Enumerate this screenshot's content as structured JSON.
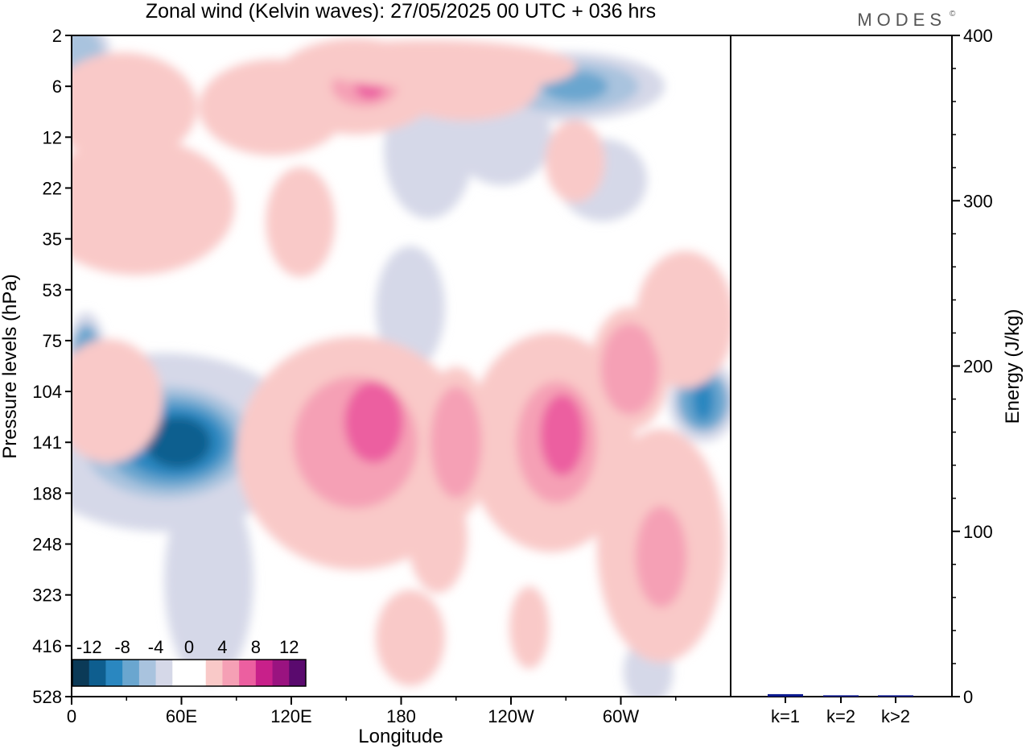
{
  "title": "Zonal wind (Kelvin waves):  27/05/2025  00 UTC  + 036 hrs",
  "brand": "MODES",
  "brand_mark": "©",
  "chart_data": [
    {
      "type": "heatmap",
      "xlabel": "Longitude",
      "ylabel": "Pressure levels (hPa)",
      "x_tick_labels": [
        "0",
        "60E",
        "120E",
        "180",
        "120W",
        "60W"
      ],
      "y_tick_labels": [
        "2",
        "6",
        "12",
        "22",
        "35",
        "53",
        "75",
        "104",
        "141",
        "188",
        "248",
        "323",
        "416",
        "528"
      ],
      "colorbar": {
        "labels": [
          "-12",
          "-8",
          "-4",
          "0",
          "4",
          "8",
          "12"
        ],
        "colors": [
          "#0b3a57",
          "#0e5e8f",
          "#2a87c0",
          "#6aa6cf",
          "#a9c3de",
          "#d5d8e8",
          "#ffffff",
          "#ffffff",
          "#f9c9c8",
          "#f5a0b5",
          "#ec5fa0",
          "#c8208a",
          "#9a1380",
          "#5a0a6e"
        ]
      },
      "field": {
        "negative": [
          {
            "lon": 50,
            "p": 141,
            "w": 58,
            "h": 2.6,
            "level": 5
          },
          {
            "lon": 52,
            "p": 141,
            "w": 46,
            "h": 2.2,
            "level": 4
          },
          {
            "lon": 54,
            "p": 141,
            "w": 36,
            "h": 1.8,
            "level": 3
          },
          {
            "lon": 56,
            "p": 141,
            "w": 28,
            "h": 1.4,
            "level": 2
          },
          {
            "lon": 58,
            "p": 141,
            "w": 18,
            "h": 1.0,
            "level": 1
          },
          {
            "lon": 8,
            "p": 85,
            "w": 8,
            "h": 1.4,
            "level": 3
          },
          {
            "lon": 345,
            "p": 110,
            "w": 14,
            "h": 1.2,
            "level": 3
          },
          {
            "lon": 345,
            "p": 110,
            "w": 6,
            "h": 0.8,
            "level": 2
          },
          {
            "lon": 270,
            "p": 6,
            "w": 40,
            "h": 1.0,
            "level": 4
          },
          {
            "lon": 275,
            "p": 6,
            "w": 18,
            "h": 0.6,
            "level": 3
          },
          {
            "lon": 235,
            "p": 12,
            "w": 20,
            "h": 1.4,
            "level": 5
          },
          {
            "lon": 185,
            "p": 60,
            "w": 14,
            "h": 1.8,
            "level": 5
          },
          {
            "lon": 195,
            "p": 14,
            "w": 18,
            "h": 2.0,
            "level": 5
          },
          {
            "lon": 75,
            "p": 300,
            "w": 18,
            "h": 3.0,
            "level": 5
          },
          {
            "lon": 5,
            "p": 3,
            "w": 12,
            "h": 1.0,
            "level": 4
          },
          {
            "lon": 30,
            "p": 12,
            "w": 12,
            "h": 1.2,
            "level": 5
          },
          {
            "lon": 290,
            "p": 20,
            "w": 18,
            "h": 1.2,
            "level": 5
          },
          {
            "lon": 315,
            "p": 470,
            "w": 10,
            "h": 1.0,
            "level": 5
          }
        ],
        "positive": [
          {
            "lon": 155,
            "p": 150,
            "w": 48,
            "h": 3.4,
            "level": 8
          },
          {
            "lon": 155,
            "p": 141,
            "w": 34,
            "h": 2.6,
            "level": 9
          },
          {
            "lon": 165,
            "p": 125,
            "w": 16,
            "h": 1.6,
            "level": 10
          },
          {
            "lon": 262,
            "p": 141,
            "w": 34,
            "h": 3.2,
            "level": 8
          },
          {
            "lon": 265,
            "p": 141,
            "w": 22,
            "h": 2.4,
            "level": 9
          },
          {
            "lon": 268,
            "p": 135,
            "w": 12,
            "h": 1.6,
            "level": 10
          },
          {
            "lon": 322,
            "p": 250,
            "w": 26,
            "h": 3.4,
            "level": 8
          },
          {
            "lon": 322,
            "p": 265,
            "w": 14,
            "h": 2.0,
            "level": 9
          },
          {
            "lon": 210,
            "p": 141,
            "w": 14,
            "h": 2.2,
            "level": 9
          },
          {
            "lon": 155,
            "p": 6,
            "w": 34,
            "h": 1.4,
            "level": 8
          },
          {
            "lon": 160,
            "p": 6,
            "w": 18,
            "h": 0.8,
            "level": 9
          },
          {
            "lon": 163,
            "p": 6,
            "w": 8,
            "h": 0.5,
            "level": 10
          },
          {
            "lon": 35,
            "p": 26,
            "w": 40,
            "h": 2.0,
            "level": 8
          },
          {
            "lon": 28,
            "p": 8,
            "w": 30,
            "h": 1.6,
            "level": 8
          },
          {
            "lon": 20,
            "p": 110,
            "w": 22,
            "h": 1.8,
            "level": 8
          },
          {
            "lon": 110,
            "p": 8,
            "w": 30,
            "h": 1.4,
            "level": 8
          },
          {
            "lon": 195,
            "p": 4,
            "w": 60,
            "h": 0.8,
            "level": 8
          },
          {
            "lon": 215,
            "p": 6,
            "w": 30,
            "h": 1.0,
            "level": 8
          },
          {
            "lon": 305,
            "p": 90,
            "w": 16,
            "h": 1.8,
            "level": 9
          },
          {
            "lon": 335,
            "p": 65,
            "w": 20,
            "h": 2.0,
            "level": 8
          },
          {
            "lon": 200,
            "p": 240,
            "w": 12,
            "h": 1.6,
            "level": 8
          },
          {
            "lon": 185,
            "p": 400,
            "w": 14,
            "h": 1.4,
            "level": 8
          },
          {
            "lon": 125,
            "p": 30,
            "w": 14,
            "h": 1.6,
            "level": 8
          },
          {
            "lon": 250,
            "p": 380,
            "w": 8,
            "h": 1.2,
            "level": 8
          },
          {
            "lon": 275,
            "p": 16,
            "w": 12,
            "h": 1.2,
            "level": 8
          }
        ]
      }
    },
    {
      "type": "bar",
      "categories": [
        "k=1",
        "k=2",
        "k>2"
      ],
      "values": [
        1.5,
        0.8,
        0.8
      ],
      "ylabel": "Energy (J/kg)",
      "ylim": [
        0,
        400
      ],
      "y_tick_labels": [
        "0",
        "100",
        "200",
        "300",
        "400"
      ],
      "bar_color": "#0b1a8f"
    }
  ]
}
